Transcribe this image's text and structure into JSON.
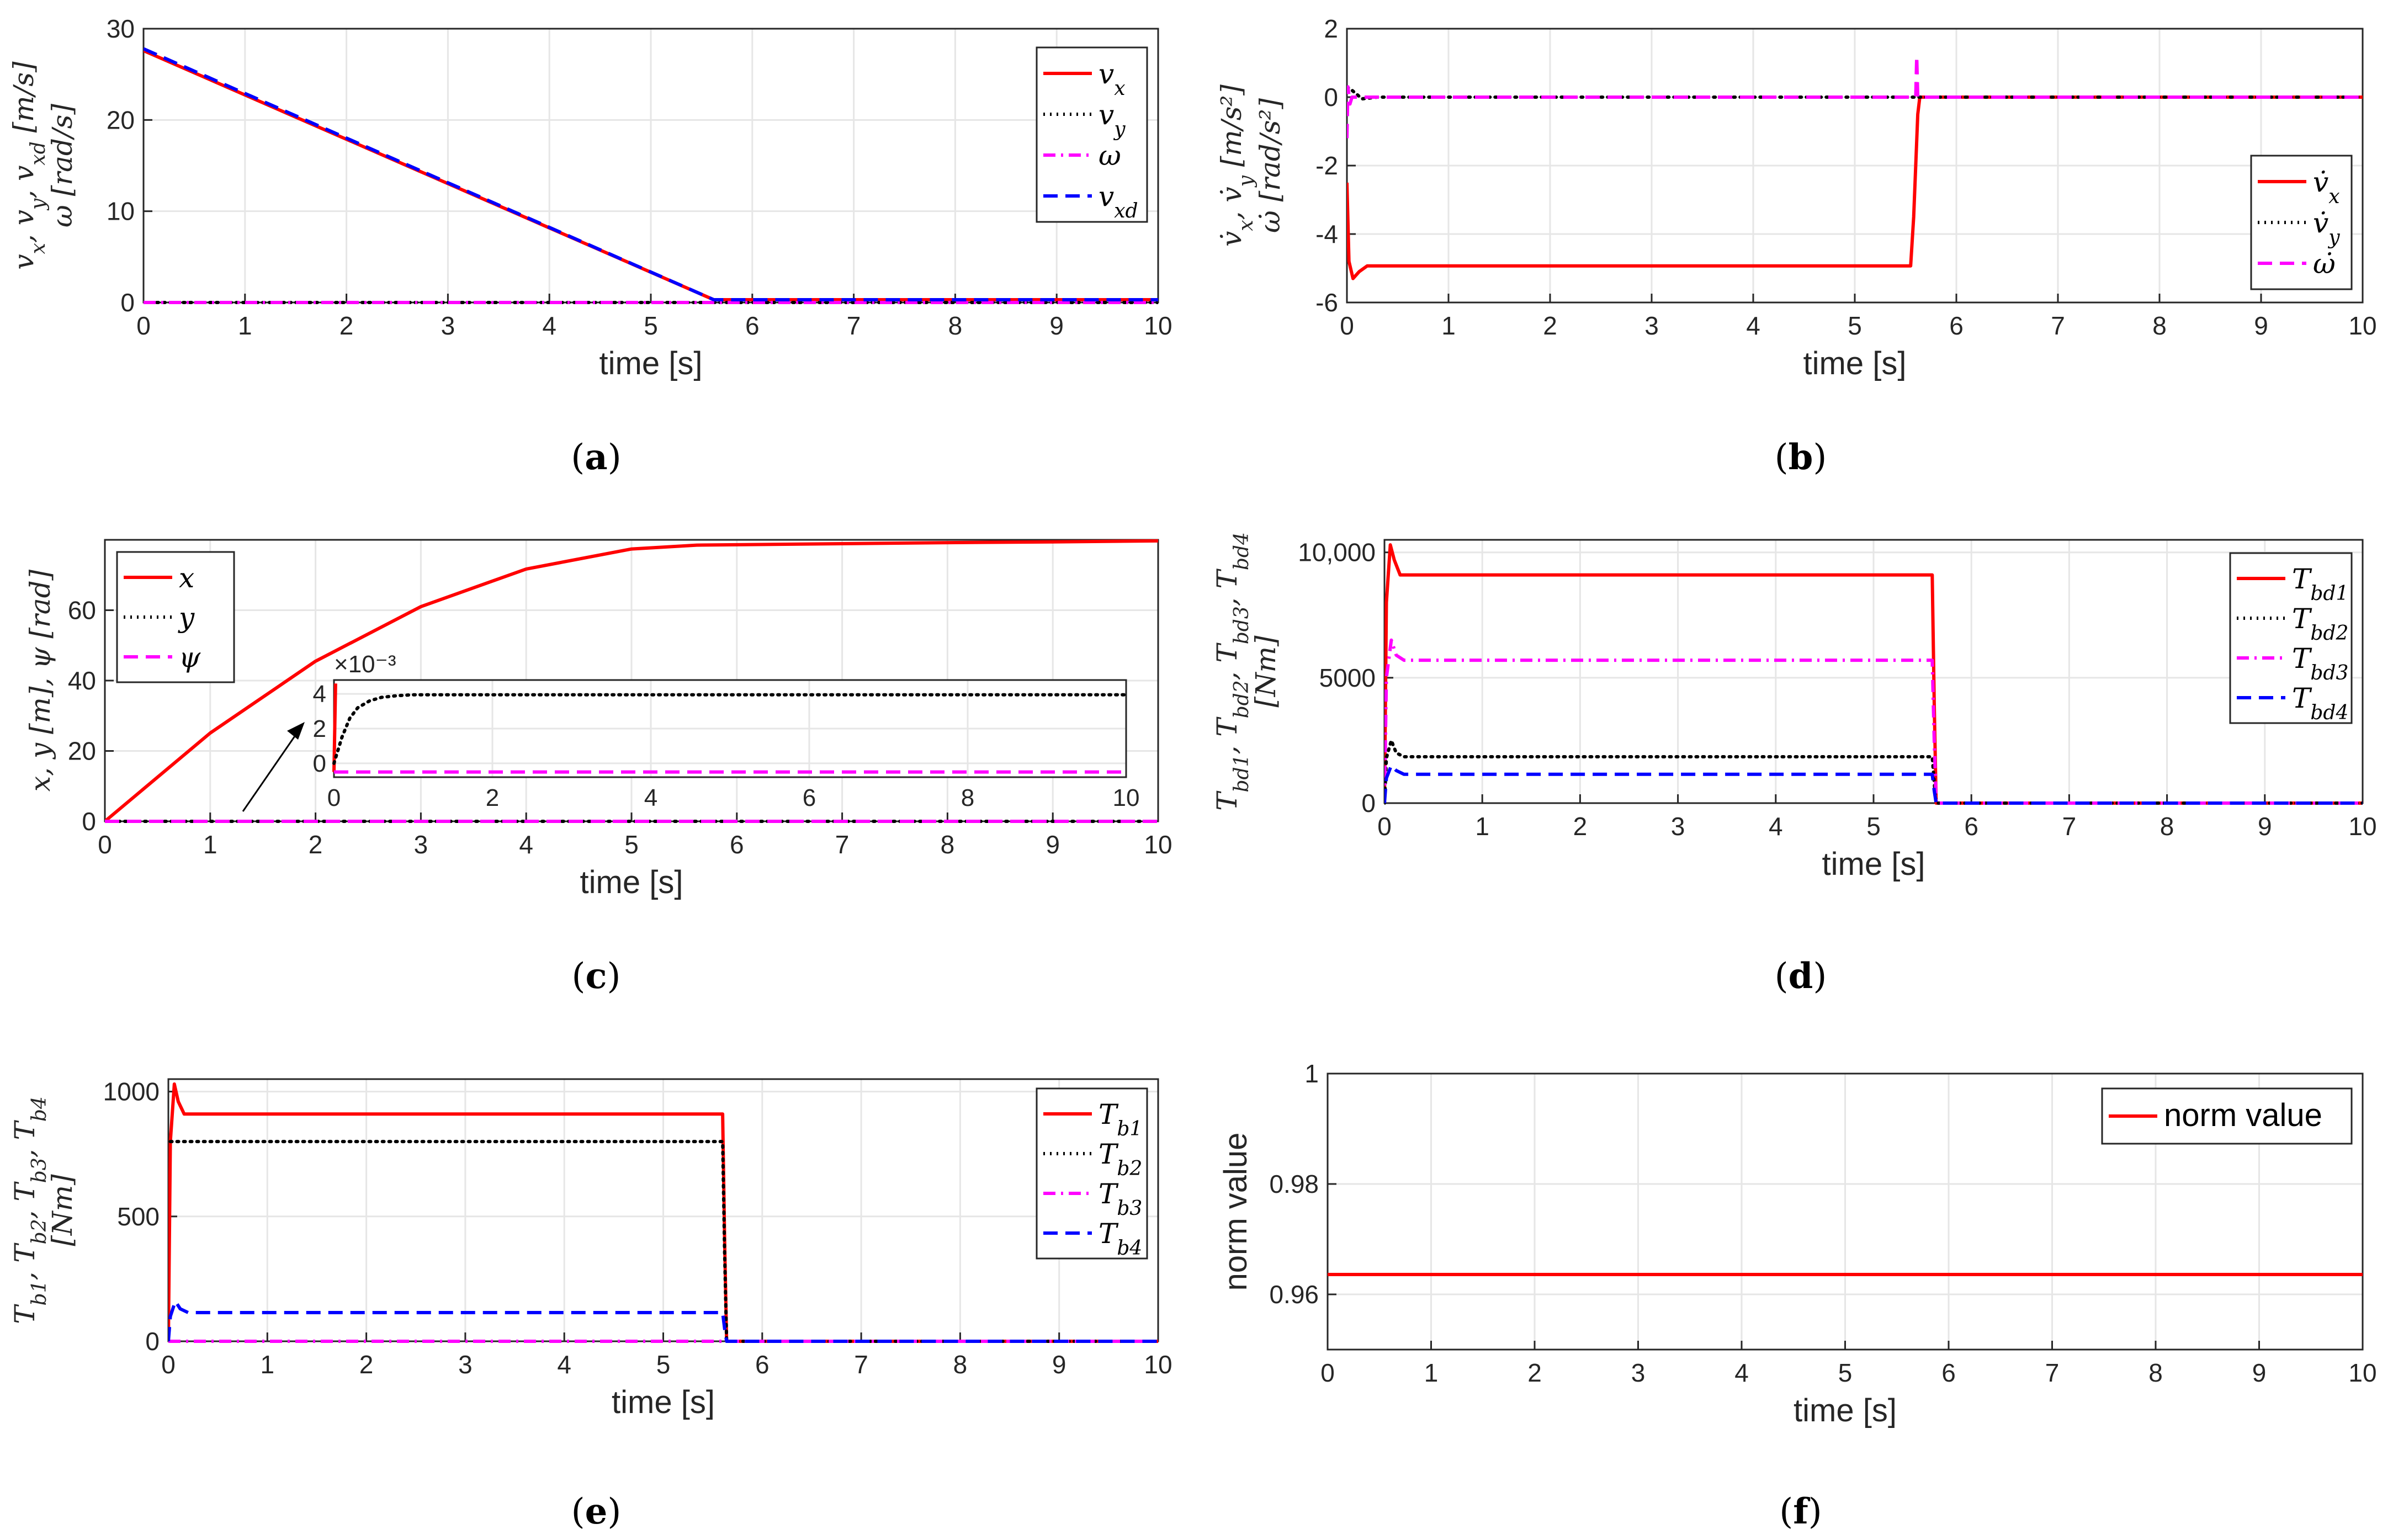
{
  "figure": {
    "captions": [
      "(a)",
      "(b)",
      "(c)",
      "(d)",
      "(e)",
      "(f)"
    ]
  },
  "chart_data": [
    {
      "id": "a",
      "type": "line",
      "caption": "(a)",
      "xlabel": "time [s]",
      "ylabel_lines": [
        "v_x, v_y, v_xd [m/s]",
        "ω [rad/s]"
      ],
      "xlim": [
        0,
        10
      ],
      "ylim": [
        0,
        30
      ],
      "xticks": [
        "0",
        "1",
        "2",
        "3",
        "4",
        "5",
        "6",
        "7",
        "8",
        "9",
        "10"
      ],
      "yticks": [
        "0",
        "10",
        "20",
        "30"
      ],
      "grid": true,
      "legend_position": "top-right",
      "series": [
        {
          "name": "v_x",
          "color": "#ff0000",
          "style": "solid",
          "x": [
            0,
            5.62,
            10
          ],
          "y": [
            27.6,
            0.3,
            0.3
          ]
        },
        {
          "name": "v_y",
          "color": "#000000",
          "style": "dotted",
          "x": [
            0,
            10
          ],
          "y": [
            0,
            0
          ]
        },
        {
          "name": "ω",
          "color": "#ff00ff",
          "style": "dashdot",
          "x": [
            0,
            10
          ],
          "y": [
            0,
            0
          ]
        },
        {
          "name": "v_xd",
          "color": "#0000ff",
          "style": "dashed",
          "x": [
            0,
            5.62,
            10
          ],
          "y": [
            27.8,
            0.3,
            0.3
          ]
        }
      ]
    },
    {
      "id": "b",
      "type": "line",
      "caption": "(b)",
      "xlabel": "time [s]",
      "ylabel_lines": [
        "v̇_x, v̇_y [m/s²]",
        "ω̇ [rad/s²]"
      ],
      "xlim": [
        0,
        10
      ],
      "ylim": [
        -6,
        2
      ],
      "xticks": [
        "0",
        "1",
        "2",
        "3",
        "4",
        "5",
        "6",
        "7",
        "8",
        "9",
        "10"
      ],
      "yticks": [
        "-6",
        "-4",
        "-2",
        "0",
        "2"
      ],
      "grid": true,
      "legend_position": "right",
      "series": [
        {
          "name": "v̇_x",
          "color": "#ff0000",
          "style": "solid",
          "x": [
            0,
            0.02,
            0.06,
            0.12,
            0.2,
            0.3,
            5.55,
            5.58,
            5.62,
            5.64,
            10
          ],
          "y": [
            -2.5,
            -4.8,
            -5.3,
            -5.1,
            -4.93,
            -4.93,
            -4.93,
            -3.5,
            -0.5,
            0,
            0
          ]
        },
        {
          "name": "v̇_y",
          "color": "#000000",
          "style": "dotted",
          "x": [
            0,
            0.05,
            0.15,
            0.3,
            10
          ],
          "y": [
            0.3,
            0.2,
            -0.05,
            0,
            0
          ]
        },
        {
          "name": "ω̇",
          "color": "#ff00ff",
          "style": "dashed",
          "x": [
            0,
            0.01,
            0.03,
            0.05,
            5.6,
            5.61,
            5.62,
            5.63,
            10
          ],
          "y": [
            -1.2,
            0.3,
            -0.2,
            0,
            0,
            1.2,
            0,
            0,
            0
          ]
        }
      ]
    },
    {
      "id": "c",
      "type": "line",
      "caption": "(c)",
      "xlabel": "time [s]",
      "ylabel_lines": [
        "x, y [m], ψ [rad]"
      ],
      "xlim": [
        0,
        10
      ],
      "ylim": [
        0,
        80
      ],
      "xticks": [
        "0",
        "1",
        "2",
        "3",
        "4",
        "5",
        "6",
        "7",
        "8",
        "9",
        "10"
      ],
      "yticks": [
        "0",
        "20",
        "40",
        "60"
      ],
      "grid": true,
      "legend_position": "top-left",
      "series": [
        {
          "name": "x",
          "color": "#ff0000",
          "style": "solid",
          "x": [
            0,
            1,
            2,
            3,
            4,
            5,
            5.62,
            6,
            7,
            8,
            9,
            10
          ],
          "y": [
            0,
            25.1,
            45.5,
            61.0,
            71.7,
            77.4,
            78.5,
            78.6,
            78.9,
            79.2,
            79.4,
            79.7
          ]
        },
        {
          "name": "y",
          "color": "#000000",
          "style": "dotted",
          "x": [
            0,
            10
          ],
          "y": [
            0,
            0
          ]
        },
        {
          "name": "ψ",
          "color": "#ff00ff",
          "style": "dashed",
          "x": [
            0,
            10
          ],
          "y": [
            0,
            0
          ]
        }
      ],
      "inset": {
        "scale_label": "×10⁻³",
        "xlim": [
          0,
          10
        ],
        "ylim": [
          -0.8,
          4.8
        ],
        "xticks": [
          "0",
          "2",
          "4",
          "6",
          "8",
          "10"
        ],
        "yticks": [
          "0",
          "2",
          "4"
        ],
        "series": [
          {
            "name": "x",
            "color": "#ff0000",
            "style": "solid",
            "x": [
              0,
              0.02
            ],
            "y": [
              -0.5,
              4.6
            ]
          },
          {
            "name": "y",
            "color": "#000000",
            "style": "dotted",
            "x": [
              0,
              0.1,
              0.2,
              0.3,
              0.45,
              0.6,
              0.8,
              1.0,
              10
            ],
            "y": [
              0,
              1.5,
              2.6,
              3.2,
              3.6,
              3.8,
              3.9,
              3.95,
              3.95
            ]
          },
          {
            "name": "ψ",
            "color": "#ff00ff",
            "style": "dashed",
            "x": [
              0,
              10
            ],
            "y": [
              -0.5,
              -0.5
            ]
          }
        ]
      }
    },
    {
      "id": "d",
      "type": "line",
      "caption": "(d)",
      "xlabel": "time [s]",
      "ylabel_lines": [
        "T_bd1, T_bd2, T_bd3, T_bd4",
        "[Nm]"
      ],
      "xlim": [
        0,
        10
      ],
      "ylim": [
        0,
        10500
      ],
      "xticks": [
        "0",
        "1",
        "2",
        "3",
        "4",
        "5",
        "6",
        "7",
        "8",
        "9",
        "10"
      ],
      "yticks": [
        "0",
        "5000",
        "10,000"
      ],
      "grid": true,
      "legend_position": "top-right",
      "series": [
        {
          "name": "T_bd1",
          "color": "#ff0000",
          "style": "solid",
          "x": [
            0,
            0.02,
            0.06,
            0.1,
            0.16,
            0.25,
            5.6,
            5.62,
            5.64,
            10
          ],
          "y": [
            0,
            8000,
            10300,
            9700,
            9100,
            9100,
            9100,
            4000,
            0,
            0
          ]
        },
        {
          "name": "T_bd2",
          "color": "#000000",
          "style": "dotted",
          "x": [
            0,
            0.02,
            0.07,
            0.12,
            0.2,
            5.6,
            5.62,
            5.64,
            10
          ],
          "y": [
            0,
            1800,
            2500,
            2000,
            1850,
            1850,
            800,
            0,
            0
          ]
        },
        {
          "name": "T_bd3",
          "color": "#ff00ff",
          "style": "dashdot",
          "x": [
            0,
            0.02,
            0.07,
            0.12,
            0.2,
            5.6,
            5.62,
            5.64,
            10
          ],
          "y": [
            0,
            5000,
            6500,
            5900,
            5700,
            5700,
            2500,
            0,
            0
          ]
        },
        {
          "name": "T_bd4",
          "color": "#0000ff",
          "style": "dashed",
          "x": [
            0,
            0.02,
            0.07,
            0.12,
            0.2,
            5.6,
            5.62,
            5.64,
            10
          ],
          "y": [
            0,
            1000,
            1500,
            1300,
            1150,
            1150,
            500,
            0,
            0
          ]
        }
      ]
    },
    {
      "id": "e",
      "type": "line",
      "caption": "(e)",
      "xlabel": "time [s]",
      "ylabel_lines": [
        "T_b1, T_b2, T_b3, T_b4",
        "[Nm]"
      ],
      "xlim": [
        0,
        10
      ],
      "ylim": [
        0,
        1050
      ],
      "xticks": [
        "0",
        "1",
        "2",
        "3",
        "4",
        "5",
        "6",
        "7",
        "8",
        "9",
        "10"
      ],
      "yticks": [
        "0",
        "500",
        "1000"
      ],
      "grid": true,
      "legend_position": "top-right",
      "series": [
        {
          "name": "T_b1",
          "color": "#ff0000",
          "style": "solid",
          "x": [
            0,
            0.02,
            0.06,
            0.1,
            0.16,
            0.25,
            5.6,
            5.62,
            5.64,
            10
          ],
          "y": [
            0,
            800,
            1030,
            960,
            910,
            910,
            910,
            400,
            0,
            0
          ]
        },
        {
          "name": "T_b2",
          "color": "#000000",
          "style": "dotted",
          "x": [
            0.02,
            5.6,
            5.62,
            5.64,
            10
          ],
          "y": [
            800,
            800,
            350,
            0,
            0
          ]
        },
        {
          "name": "T_b3",
          "color": "#ff00ff",
          "style": "dashdot",
          "x": [
            0,
            10
          ],
          "y": [
            0,
            0
          ]
        },
        {
          "name": "T_b4",
          "color": "#0000ff",
          "style": "dashed",
          "x": [
            0,
            0.02,
            0.07,
            0.12,
            0.2,
            5.6,
            5.62,
            5.64,
            10
          ],
          "y": [
            0,
            100,
            160,
            130,
            115,
            115,
            50,
            0,
            0
          ]
        }
      ]
    },
    {
      "id": "f",
      "type": "line",
      "caption": "(f)",
      "xlabel": "time [s]",
      "ylabel_lines": [
        "norm value"
      ],
      "xlim": [
        0,
        10
      ],
      "ylim": [
        0.95,
        1.0
      ],
      "xticks": [
        "0",
        "1",
        "2",
        "3",
        "4",
        "5",
        "6",
        "7",
        "8",
        "9",
        "10"
      ],
      "yticks": [
        "0.96",
        "0.98",
        "1"
      ],
      "grid": true,
      "legend_position": "top-right",
      "series": [
        {
          "name": "norm value",
          "color": "#ff0000",
          "style": "solid",
          "x": [
            0,
            10
          ],
          "y": [
            0.9636,
            0.9636
          ]
        }
      ]
    }
  ]
}
